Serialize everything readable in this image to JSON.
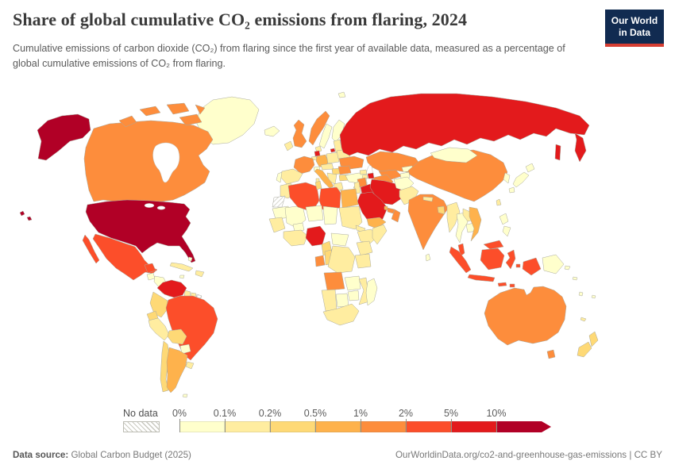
{
  "header": {
    "title": "Share of global cumulative CO₂ emissions from flaring, 2024",
    "logo_line1": "Our World",
    "logo_line2": "in Data",
    "logo_bg": "#112b51",
    "logo_accent": "#d63e32"
  },
  "subtitle": "Cumulative emissions of carbon dioxide (CO₂) from flaring since the first year of available data, measured as a percentage of global cumulative emissions of CO₂ from flaring.",
  "legend": {
    "no_data_label": "No data",
    "tick_labels": [
      "0%",
      "0.1%",
      "0.2%",
      "0.5%",
      "1%",
      "2%",
      "5%",
      "10%"
    ]
  },
  "footer": {
    "datasource_label": "Data source:",
    "datasource_value": " Global Carbon Budget (2025)",
    "link": "OurWorldinData.org/co2-and-greenhouse-gas-emissions",
    "separator": " | ",
    "license": "CC BY"
  },
  "chart_data": {
    "type": "choropleth",
    "title": "Share of global cumulative CO₂ emissions from flaring, 2024",
    "year": "2024",
    "unit": "%",
    "bins": [
      "0-0.1%",
      "0.1-0.2%",
      "0.2-0.5%",
      "0.5-1%",
      "1-2%",
      "2-5%",
      "5-10%",
      "10%+",
      "No data"
    ],
    "bin_colors": [
      "#ffffcc",
      "#ffeda0",
      "#fed976",
      "#feb24c",
      "#fd8d3c",
      "#fc4e2a",
      "#e31a1c",
      "#b10026",
      "hatch"
    ],
    "countries": {
      "usa": {
        "name": "United States",
        "bin": "10%+"
      },
      "russia": {
        "name": "Russia",
        "bin": "5-10%"
      },
      "venezuela": {
        "name": "Venezuela",
        "bin": "5-10%"
      },
      "nigeria": {
        "name": "Nigeria",
        "bin": "5-10%"
      },
      "iran": {
        "name": "Iran",
        "bin": "5-10%"
      },
      "iraq": {
        "name": "Iraq",
        "bin": "5-10%"
      },
      "saudi-arabia": {
        "name": "Saudi Arabia",
        "bin": "5-10%"
      },
      "azerbaijan": {
        "name": "Azerbaijan",
        "bin": "5-10%"
      },
      "kuwait": {
        "name": "Kuwait",
        "bin": "5-10%"
      },
      "netherlands": {
        "name": "Netherlands",
        "bin": "5-10%"
      },
      "mexico": {
        "name": "Mexico",
        "bin": "2-5%"
      },
      "brazil": {
        "name": "Brazil",
        "bin": "2-5%"
      },
      "algeria": {
        "name": "Algeria",
        "bin": "2-5%"
      },
      "libya": {
        "name": "Libya",
        "bin": "2-5%"
      },
      "indonesia": {
        "name": "Indonesia",
        "bin": "2-5%"
      },
      "malaysia": {
        "name": "Malaysia",
        "bin": "2-5%"
      },
      "canada": {
        "name": "Canada",
        "bin": "1-2%"
      },
      "norway": {
        "name": "Norway",
        "bin": "1-2%"
      },
      "uk": {
        "name": "United Kingdom",
        "bin": "1-2%"
      },
      "france": {
        "name": "France",
        "bin": "1-2%"
      },
      "ukraine": {
        "name": "Ukraine",
        "bin": "1-2%"
      },
      "romania": {
        "name": "Romania",
        "bin": "1-2%"
      },
      "kazakhstan": {
        "name": "Kazakhstan",
        "bin": "1-2%"
      },
      "turkmenistan": {
        "name": "Turkmenistan",
        "bin": "1-2%"
      },
      "uzbekistan": {
        "name": "Uzbekistan",
        "bin": "1-2%"
      },
      "syria": {
        "name": "Syria",
        "bin": "1-2%"
      },
      "oman": {
        "name": "Oman",
        "bin": "1-2%"
      },
      "uae": {
        "name": "United Arab Emirates",
        "bin": "1-2%"
      },
      "china": {
        "name": "China",
        "bin": "1-2%"
      },
      "india": {
        "name": "India",
        "bin": "1-2%"
      },
      "australia": {
        "name": "Australia",
        "bin": "1-2%"
      },
      "angola": {
        "name": "Angola",
        "bin": "1-2%"
      },
      "gabon": {
        "name": "Gabon",
        "bin": "1-2%"
      },
      "germany": {
        "name": "Germany",
        "bin": "0.5-1%"
      },
      "italy": {
        "name": "Italy",
        "bin": "0.5-1%"
      },
      "argentina": {
        "name": "Argentina",
        "bin": "0.5-1%"
      },
      "egypt": {
        "name": "Egypt",
        "bin": "0.5-1%"
      },
      "vietnam": {
        "name": "Vietnam",
        "bin": "0.5-1%"
      },
      "yemen": {
        "name": "Yemen",
        "bin": "0.5-1%"
      },
      "qatar": {
        "name": "Qatar",
        "bin": "0.5-1%"
      },
      "colombia": {
        "name": "Colombia",
        "bin": "0.2-0.5%"
      },
      "ecuador": {
        "name": "Ecuador",
        "bin": "0.2-0.5%"
      },
      "bolivia": {
        "name": "Bolivia",
        "bin": "0.2-0.5%"
      },
      "chile": {
        "name": "Chile",
        "bin": "0.2-0.5%"
      },
      "cameroon": {
        "name": "Cameroon",
        "bin": "0.2-0.5%"
      },
      "congo": {
        "name": "Congo",
        "bin": "0.2-0.5%"
      },
      "new-zealand": {
        "name": "New Zealand",
        "bin": "0.2-0.5%"
      },
      "hungary": {
        "name": "Hungary",
        "bin": "0.2-0.5%"
      },
      "tunisia": {
        "name": "Tunisia",
        "bin": "0.2-0.5%"
      },
      "bangladesh": {
        "name": "Bangladesh",
        "bin": "0.2-0.5%"
      },
      "bulgaria": {
        "name": "Bulgaria",
        "bin": "0.2-0.5%"
      },
      "peru": {
        "name": "Peru",
        "bin": "0.1-0.2%"
      },
      "spain": {
        "name": "Spain",
        "bin": "0.1-0.2%"
      },
      "poland": {
        "name": "Poland",
        "bin": "0.1-0.2%"
      },
      "belarus": {
        "name": "Belarus",
        "bin": "0.1-0.2%"
      },
      "sudan": {
        "name": "Sudan",
        "bin": "0.1-0.2%"
      },
      "myanmar": {
        "name": "Myanmar",
        "bin": "0.1-0.2%"
      },
      "pakistan": {
        "name": "Pakistan",
        "bin": "0.1-0.2%"
      },
      "mozambique": {
        "name": "Mozambique",
        "bin": "0.1-0.2%"
      },
      "namibia": {
        "name": "Namibia",
        "bin": "0.1-0.2%"
      },
      "south-africa": {
        "name": "South Africa",
        "bin": "0.1-0.2%"
      },
      "ethiopia": {
        "name": "Ethiopia",
        "bin": "0.1-0.2%"
      },
      "somalia": {
        "name": "Somalia",
        "bin": "0.1-0.2%"
      },
      "kenya": {
        "name": "Kenya",
        "bin": "0.1-0.2%"
      },
      "tanzania": {
        "name": "Tanzania",
        "bin": "0.1-0.2%"
      },
      "morocco": {
        "name": "Morocco",
        "bin": "0.1-0.2%"
      },
      "west-africa-coast": {
        "name": "Ghana / Côte d'Ivoire",
        "bin": "0.1-0.2%"
      },
      "senegal": {
        "name": "Senegal / Guinea",
        "bin": "0.1-0.2%"
      },
      "drc": {
        "name": "Democratic Republic of Congo",
        "bin": "0.1-0.2%"
      },
      "uruguay": {
        "name": "Uruguay",
        "bin": "0.1-0.2%"
      },
      "cuba": {
        "name": "Cuba",
        "bin": "0.1-0.2%"
      },
      "hispaniola": {
        "name": "Dominican Republic / Haiti",
        "bin": "0.1-0.2%"
      },
      "denmark": {
        "name": "Denmark",
        "bin": "0.1-0.2%"
      },
      "baltics": {
        "name": "Baltic states",
        "bin": "0.1-0.2%"
      },
      "balkans": {
        "name": "Balkans",
        "bin": "0.1-0.2%"
      },
      "greece": {
        "name": "Greece",
        "bin": "0.1-0.2%"
      },
      "austria-czech": {
        "name": "Austria / Czechia",
        "bin": "0.1-0.2%"
      },
      "nepal": {
        "name": "Nepal",
        "bin": "0.1-0.2%"
      },
      "taiwan": {
        "name": "Taiwan",
        "bin": "0.1-0.2%"
      },
      "laos": {
        "name": "Laos",
        "bin": "0.1-0.2%"
      },
      "ireland": {
        "name": "Ireland",
        "bin": "0.1-0.2%"
      },
      "levant": {
        "name": "Jordan / Israel",
        "bin": "0.1-0.2%"
      },
      "georgia": {
        "name": "Georgia",
        "bin": "0.1-0.2%"
      },
      "armenia": {
        "name": "Armenia",
        "bin": "0.1-0.2%"
      },
      "eritrea": {
        "name": "Eritrea",
        "bin": "0.1-0.2%"
      },
      "panama": {
        "name": "Costa Rica / Panama",
        "bin": "0.1-0.2%"
      },
      "guyana": {
        "name": "Guyana",
        "bin": "0.1-0.2%"
      },
      "suriname": {
        "name": "Suriname",
        "bin": "0.1-0.2%"
      },
      "belgium": {
        "name": "Belgium",
        "bin": "0.1-0.2%"
      },
      "sardinia": {
        "name": "Sardinia",
        "bin": "0.1-0.2%"
      },
      "cyprus": {
        "name": "Cyprus",
        "bin": "0.1-0.2%"
      },
      "new-caledonia": {
        "name": "New Caledonia",
        "bin": "0.1-0.2%"
      },
      "greenland": {
        "name": "Greenland",
        "bin": "0-0.1%"
      },
      "sweden": {
        "name": "Sweden",
        "bin": "0-0.1%"
      },
      "finland": {
        "name": "Finland",
        "bin": "0-0.1%"
      },
      "iceland": {
        "name": "Iceland",
        "bin": "0-0.1%"
      },
      "portugal": {
        "name": "Portugal",
        "bin": "0-0.1%"
      },
      "turkey": {
        "name": "Turkey",
        "bin": "0-0.1%"
      },
      "mongolia": {
        "name": "Mongolia",
        "bin": "0-0.1%"
      },
      "japan": {
        "name": "Japan",
        "bin": "0-0.1%"
      },
      "korea": {
        "name": "South Korea",
        "bin": "0-0.1%"
      },
      "thailand": {
        "name": "Thailand",
        "bin": "0-0.1%"
      },
      "philippines": {
        "name": "Philippines",
        "bin": "0-0.1%"
      },
      "png": {
        "name": "Papua New Guinea",
        "bin": "0-0.1%"
      },
      "madagascar": {
        "name": "Madagascar",
        "bin": "0-0.1%"
      },
      "mali": {
        "name": "Mali",
        "bin": "0-0.1%"
      },
      "niger": {
        "name": "Niger",
        "bin": "0-0.1%"
      },
      "chad": {
        "name": "Chad",
        "bin": "0-0.1%"
      },
      "mauritania": {
        "name": "Mauritania",
        "bin": "0-0.1%"
      },
      "car": {
        "name": "Central African Republic",
        "bin": "0-0.1%"
      },
      "zambia": {
        "name": "Zambia",
        "bin": "0-0.1%"
      },
      "zimbabwe": {
        "name": "Zimbabwe",
        "bin": "0-0.1%"
      },
      "botswana": {
        "name": "Botswana",
        "bin": "0-0.1%"
      },
      "paraguay": {
        "name": "Paraguay",
        "bin": "0-0.1%"
      },
      "afghanistan": {
        "name": "Afghanistan",
        "bin": "0-0.1%"
      },
      "sri-lanka": {
        "name": "Sri Lanka",
        "bin": "0-0.1%"
      },
      "burkina": {
        "name": "Burkina Faso",
        "bin": "0-0.1%"
      },
      "cambodia": {
        "name": "Cambodia",
        "bin": "0-0.1%"
      },
      "guatemala": {
        "name": "Guatemala",
        "bin": "0-0.1%"
      },
      "honduras": {
        "name": "Honduras / Nicaragua",
        "bin": "0-0.1%"
      },
      "switzerland": {
        "name": "Switzerland",
        "bin": "0-0.1%"
      },
      "kyrgyzstan": {
        "name": "Kyrgyzstan",
        "bin": "0-0.1%"
      },
      "tajikistan": {
        "name": "Tajikistan",
        "bin": "0-0.1%"
      },
      "bahamas": {
        "name": "Bahamas",
        "bin": "0-0.1%"
      },
      "falklands": {
        "name": "Falkland Islands",
        "bin": "0-0.1%"
      },
      "fiji": {
        "name": "Fiji",
        "bin": "0-0.1%"
      },
      "solomon": {
        "name": "Solomon Islands",
        "bin": "0-0.1%"
      },
      "vanuatu": {
        "name": "Vanuatu",
        "bin": "0-0.1%"
      },
      "svalbard": {
        "name": "Svalbard",
        "bin": "0-0.1%"
      },
      "jamaica": {
        "name": "Jamaica",
        "bin": "0-0.1%"
      },
      "western-sahara": {
        "name": "Western Sahara",
        "bin": "No data"
      },
      "french-guiana": {
        "name": "French Guiana",
        "bin": "No data"
      }
    }
  }
}
